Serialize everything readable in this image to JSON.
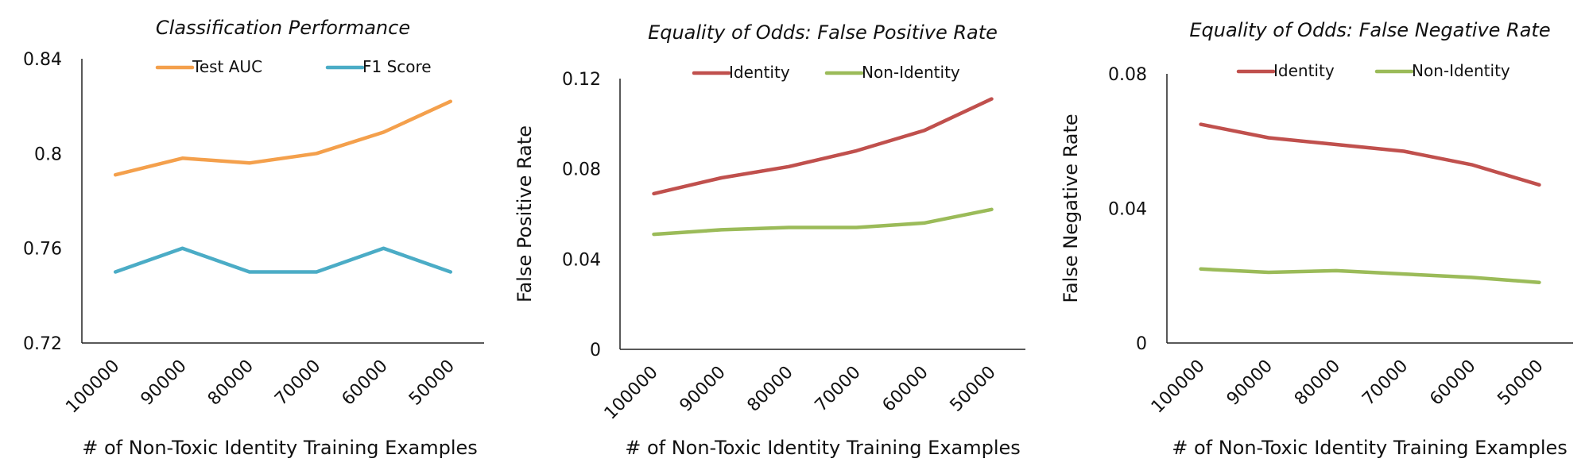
{
  "chart_data": [
    {
      "type": "line",
      "title": "Classification Performance",
      "xlabel": "# of Non-Toxic Identity Training Examples",
      "ylabel": "",
      "categories": [
        "100000",
        "90000",
        "80000",
        "70000",
        "60000",
        "50000"
      ],
      "ylim": [
        0.72,
        0.84
      ],
      "yticks": [
        "0.72",
        "0.76",
        "0.8",
        "0.84"
      ],
      "ytick_values": [
        0.72,
        0.76,
        0.8,
        0.84
      ],
      "grid": false,
      "legend_position": "top",
      "series": [
        {
          "name": "Test AUC",
          "color": "#F4A04C",
          "values": [
            0.791,
            0.798,
            0.796,
            0.8,
            0.809,
            0.822
          ]
        },
        {
          "name": "F1 Score",
          "color": "#4BACC6",
          "values": [
            0.75,
            0.76,
            0.75,
            0.75,
            0.76,
            0.75
          ]
        }
      ]
    },
    {
      "type": "line",
      "title": "Equality of Odds: False Positive Rate",
      "xlabel": "# of Non-Toxic Identity Training Examples",
      "ylabel": "False Positive Rate",
      "categories": [
        "100000",
        "90000",
        "80000",
        "70000",
        "60000",
        "50000"
      ],
      "ylim": [
        0,
        0.12
      ],
      "yticks": [
        "0",
        "0.04",
        "0.08",
        "0.12"
      ],
      "ytick_values": [
        0,
        0.04,
        0.08,
        0.12
      ],
      "grid": false,
      "legend_position": "top",
      "series": [
        {
          "name": "Identity",
          "color": "#C0504D",
          "values": [
            0.069,
            0.076,
            0.081,
            0.088,
            0.097,
            0.111
          ]
        },
        {
          "name": "Non-Identity",
          "color": "#9BBB59",
          "values": [
            0.051,
            0.053,
            0.054,
            0.054,
            0.056,
            0.062
          ]
        }
      ]
    },
    {
      "type": "line",
      "title": "Equality of Odds: False Negative Rate",
      "xlabel": "# of Non-Toxic Identity Training Examples",
      "ylabel": "False Negative  Rate",
      "categories": [
        "100000",
        "90000",
        "80000",
        "70000",
        "60000",
        "50000"
      ],
      "ylim": [
        0,
        0.08
      ],
      "yticks": [
        "0",
        "0.04",
        "0.08"
      ],
      "ytick_values": [
        0,
        0.04,
        0.08
      ],
      "grid": false,
      "legend_position": "top",
      "series": [
        {
          "name": "Identity",
          "color": "#C0504D",
          "values": [
            0.065,
            0.061,
            0.059,
            0.057,
            0.053,
            0.047
          ]
        },
        {
          "name": "Non-Identity",
          "color": "#9BBB59",
          "values": [
            0.022,
            0.021,
            0.0215,
            0.0205,
            0.0195,
            0.018
          ]
        }
      ]
    }
  ]
}
